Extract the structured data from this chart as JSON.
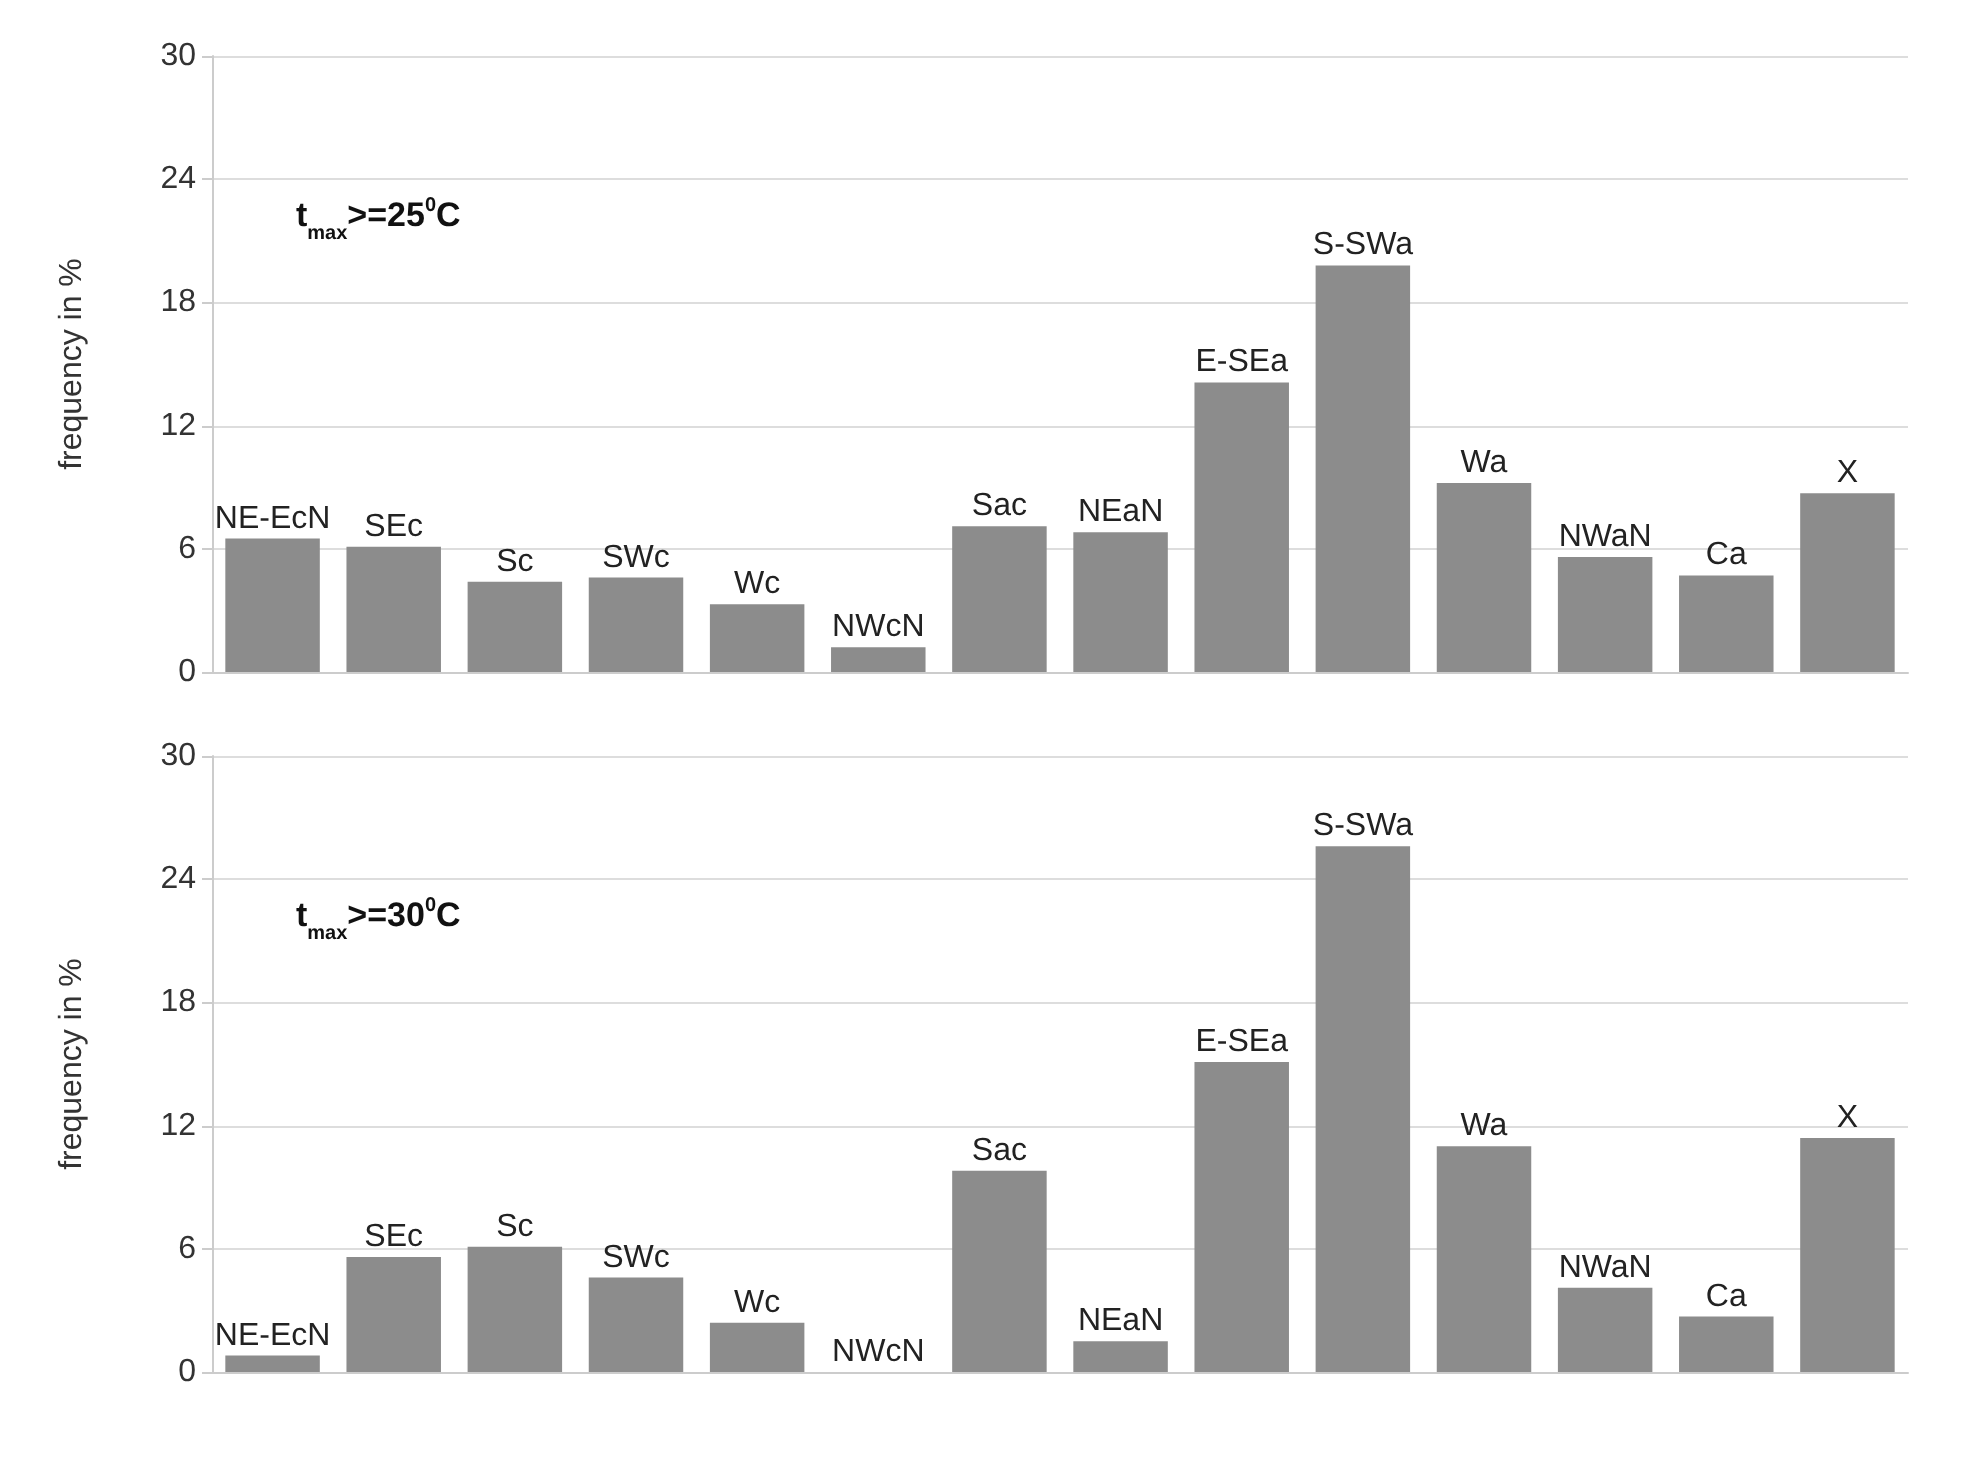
{
  "chart_data": [
    {
      "type": "bar",
      "categories": [
        "NE-EcN",
        "SEc",
        "Sc",
        "SWc",
        "Wc",
        "NWcN",
        "Sac",
        "NEaN",
        "E-SEa",
        "S-SWa",
        "Wa",
        "NWaN",
        "Ca",
        "X"
      ],
      "values": [
        6.5,
        6.1,
        4.4,
        4.6,
        3.3,
        1.2,
        7.1,
        6.8,
        14.1,
        19.8,
        9.2,
        5.6,
        4.7,
        8.7
      ],
      "color": "#8c8c8c",
      "ylabel": "frequency in %",
      "ylim": [
        0,
        30
      ],
      "yticks": [
        0,
        6,
        12,
        18,
        24,
        30
      ],
      "grid": "y",
      "tick_labels": "y",
      "annotations": [
        "t$_{max}$>=25$^{0}$C"
      ]
    },
    {
      "type": "bar",
      "categories": [
        "NE-EcN",
        "SEc",
        "Sc",
        "SWc",
        "Wc",
        "NWcN",
        "Sac",
        "NEaN",
        "E-SEa",
        "S-SWa",
        "Wa",
        "NWaN",
        "Ca",
        "X"
      ],
      "values": [
        0.8,
        5.6,
        6.1,
        4.6,
        2.4,
        0,
        9.8,
        1.5,
        15.1,
        25.6,
        11.0,
        4.1,
        2.7,
        11.4
      ],
      "color": "#8c8c8c",
      "ylabel": "frequency in %",
      "ylim": [
        0,
        30
      ],
      "yticks": [
        0,
        6,
        12,
        18,
        24,
        30
      ],
      "grid": "y",
      "tick_labels": "y",
      "annotations": [
        "t$_{max}$>=30$^{0}$C"
      ]
    }
  ]
}
